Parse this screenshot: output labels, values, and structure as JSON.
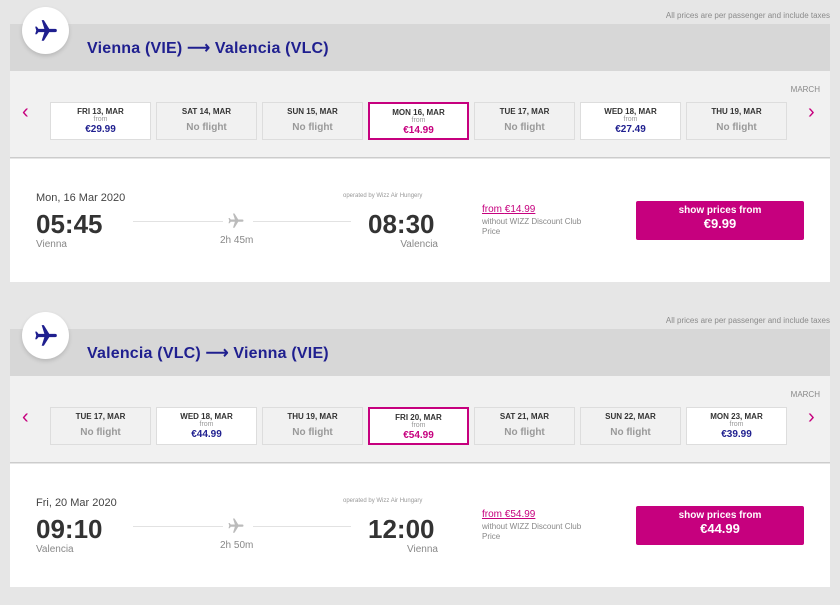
{
  "prices_note": "All prices are per passenger and include taxes",
  "colors": {
    "brand": "#c6007e",
    "navy": "#1f1f8f"
  },
  "sections": [
    {
      "route": "Vienna (VIE) ⟶ Valencia (VLC)",
      "month": "MARCH",
      "dates": [
        {
          "day": "FRI 13, MAR",
          "from": "from",
          "price": "€29.99",
          "state": "available"
        },
        {
          "day": "SAT 14, MAR",
          "status": "No flight",
          "state": "none"
        },
        {
          "day": "SUN 15, MAR",
          "status": "No flight",
          "state": "none"
        },
        {
          "day": "MON 16, MAR",
          "from": "from",
          "price": "€14.99",
          "state": "selected"
        },
        {
          "day": "TUE 17, MAR",
          "status": "No flight",
          "state": "none"
        },
        {
          "day": "WED 18, MAR",
          "from": "from",
          "price": "€27.49",
          "state": "available"
        },
        {
          "day": "THU 19, MAR",
          "status": "No flight",
          "state": "none"
        }
      ],
      "flight": {
        "date": "Mon, 16 Mar 2020",
        "dep_time": "05:45",
        "dep_city": "Vienna",
        "arr_time": "08:30",
        "arr_city": "Valencia",
        "duration": "2h 45m",
        "operator": "operated by Wizz Air Hungery",
        "from_label": "from",
        "from_price": "€14.99",
        "club_note": "without WIZZ Discount Club Price",
        "button_label": "show prices from",
        "button_price": "€9.99"
      }
    },
    {
      "route": "Valencia (VLC) ⟶ Vienna (VIE)",
      "month": "MARCH",
      "dates": [
        {
          "day": "TUE 17, MAR",
          "status": "No flight",
          "state": "none"
        },
        {
          "day": "WED 18, MAR",
          "from": "from",
          "price": "€44.99",
          "state": "available"
        },
        {
          "day": "THU 19, MAR",
          "status": "No flight",
          "state": "none"
        },
        {
          "day": "FRI 20, MAR",
          "from": "from",
          "price": "€54.99",
          "state": "selected"
        },
        {
          "day": "SAT 21, MAR",
          "status": "No flight",
          "state": "none"
        },
        {
          "day": "SUN 22, MAR",
          "status": "No flight",
          "state": "none"
        },
        {
          "day": "MON 23, MAR",
          "from": "from",
          "price": "€39.99",
          "state": "available"
        }
      ],
      "flight": {
        "date": "Fri, 20 Mar 2020",
        "dep_time": "09:10",
        "dep_city": "Valencia",
        "arr_time": "12:00",
        "arr_city": "Vienna",
        "duration": "2h 50m",
        "operator": "operated by Wizz Air Hungary",
        "from_label": "from",
        "from_price": "€54.99",
        "club_note": "without WIZZ Discount Club Price",
        "button_label": "show prices from",
        "button_price": "€44.99"
      }
    }
  ]
}
